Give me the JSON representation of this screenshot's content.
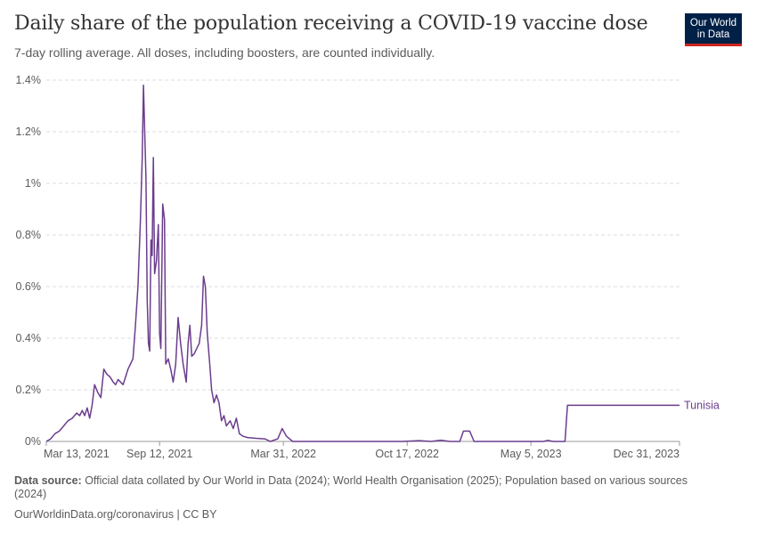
{
  "header": {
    "title": "Daily share of the population receiving a COVID-19 vaccine dose",
    "subtitle": "7-day rolling average. All doses, including boosters, are counted individually."
  },
  "logo": {
    "line1": "Our World",
    "line2": "in Data"
  },
  "footer": {
    "source_label": "Data source:",
    "source_text": " Official data collated by Our World in Data (2024); World Health Organisation (2025); Population based on various sources (2024)",
    "credit": "OurWorldinData.org/coronavirus | CC BY"
  },
  "colors": {
    "series": "#6b3d8d",
    "grid": "#dddddd",
    "axis": "#999999"
  },
  "chart_data": {
    "type": "line",
    "title": "Daily share of the population receiving a COVID-19 vaccine dose",
    "ylabel": "",
    "xlabel": "",
    "ylim": [
      0,
      1.4
    ],
    "y_ticks": [
      {
        "value": 0,
        "label": "0%"
      },
      {
        "value": 0.2,
        "label": "0.2%"
      },
      {
        "value": 0.4,
        "label": "0.4%"
      },
      {
        "value": 0.6,
        "label": "0.6%"
      },
      {
        "value": 0.8,
        "label": "0.8%"
      },
      {
        "value": 1.0,
        "label": "1%"
      },
      {
        "value": 1.2,
        "label": "1.2%"
      },
      {
        "value": 1.4,
        "label": "1.4%"
      }
    ],
    "xlim": [
      "2021-03-13",
      "2023-12-31"
    ],
    "x_ticks": [
      {
        "date": "2021-03-13",
        "label": "Mar 13, 2021"
      },
      {
        "date": "2021-09-12",
        "label": "Sep 12, 2021"
      },
      {
        "date": "2022-03-31",
        "label": "Mar 31, 2022"
      },
      {
        "date": "2022-10-17",
        "label": "Oct 17, 2022"
      },
      {
        "date": "2023-05-05",
        "label": "May 5, 2023"
      },
      {
        "date": "2023-12-31",
        "label": "Dec 31, 2023"
      }
    ],
    "grid": true,
    "legend": "end-of-line",
    "series": [
      {
        "name": "Tunisia",
        "points": [
          [
            "2021-03-13",
            0.0
          ],
          [
            "2021-03-20",
            0.01
          ],
          [
            "2021-03-27",
            0.03
          ],
          [
            "2021-04-03",
            0.04
          ],
          [
            "2021-04-10",
            0.06
          ],
          [
            "2021-04-17",
            0.08
          ],
          [
            "2021-04-24",
            0.09
          ],
          [
            "2021-05-01",
            0.11
          ],
          [
            "2021-05-06",
            0.1
          ],
          [
            "2021-05-10",
            0.12
          ],
          [
            "2021-05-14",
            0.1
          ],
          [
            "2021-05-18",
            0.13
          ],
          [
            "2021-05-22",
            0.09
          ],
          [
            "2021-05-26",
            0.14
          ],
          [
            "2021-05-30",
            0.22
          ],
          [
            "2021-06-04",
            0.19
          ],
          [
            "2021-06-09",
            0.17
          ],
          [
            "2021-06-14",
            0.28
          ],
          [
            "2021-06-19",
            0.26
          ],
          [
            "2021-06-24",
            0.25
          ],
          [
            "2021-06-29",
            0.23
          ],
          [
            "2021-07-03",
            0.22
          ],
          [
            "2021-07-07",
            0.24
          ],
          [
            "2021-07-11",
            0.23
          ],
          [
            "2021-07-15",
            0.22
          ],
          [
            "2021-07-19",
            0.25
          ],
          [
            "2021-07-23",
            0.28
          ],
          [
            "2021-07-27",
            0.3
          ],
          [
            "2021-07-31",
            0.32
          ],
          [
            "2021-08-04",
            0.45
          ],
          [
            "2021-08-08",
            0.6
          ],
          [
            "2021-08-12",
            0.85
          ],
          [
            "2021-08-15",
            1.1
          ],
          [
            "2021-08-17",
            1.38
          ],
          [
            "2021-08-19",
            1.2
          ],
          [
            "2021-08-21",
            1.02
          ],
          [
            "2021-08-23",
            0.55
          ],
          [
            "2021-08-25",
            0.38
          ],
          [
            "2021-08-27",
            0.35
          ],
          [
            "2021-08-29",
            0.78
          ],
          [
            "2021-08-31",
            0.72
          ],
          [
            "2021-09-02",
            1.1
          ],
          [
            "2021-09-04",
            0.65
          ],
          [
            "2021-09-07",
            0.7
          ],
          [
            "2021-09-10",
            0.84
          ],
          [
            "2021-09-12",
            0.42
          ],
          [
            "2021-09-14",
            0.36
          ],
          [
            "2021-09-17",
            0.92
          ],
          [
            "2021-09-20",
            0.86
          ],
          [
            "2021-09-22",
            0.3
          ],
          [
            "2021-09-26",
            0.32
          ],
          [
            "2021-09-30",
            0.28
          ],
          [
            "2021-10-04",
            0.23
          ],
          [
            "2021-10-08",
            0.3
          ],
          [
            "2021-10-12",
            0.48
          ],
          [
            "2021-10-16",
            0.38
          ],
          [
            "2021-10-20",
            0.3
          ],
          [
            "2021-10-25",
            0.23
          ],
          [
            "2021-10-28",
            0.38
          ],
          [
            "2021-10-31",
            0.45
          ],
          [
            "2021-11-03",
            0.33
          ],
          [
            "2021-11-07",
            0.34
          ],
          [
            "2021-11-11",
            0.36
          ],
          [
            "2021-11-15",
            0.38
          ],
          [
            "2021-11-19",
            0.45
          ],
          [
            "2021-11-22",
            0.64
          ],
          [
            "2021-11-25",
            0.6
          ],
          [
            "2021-11-28",
            0.42
          ],
          [
            "2021-12-02",
            0.3
          ],
          [
            "2021-12-05",
            0.2
          ],
          [
            "2021-12-09",
            0.15
          ],
          [
            "2021-12-13",
            0.18
          ],
          [
            "2021-12-17",
            0.15
          ],
          [
            "2021-12-21",
            0.08
          ],
          [
            "2021-12-25",
            0.1
          ],
          [
            "2021-12-29",
            0.06
          ],
          [
            "2022-01-04",
            0.08
          ],
          [
            "2022-01-09",
            0.05
          ],
          [
            "2022-01-14",
            0.09
          ],
          [
            "2022-01-19",
            0.03
          ],
          [
            "2022-01-25",
            0.02
          ],
          [
            "2022-02-01",
            0.015
          ],
          [
            "2022-02-15",
            0.012
          ],
          [
            "2022-03-01",
            0.01
          ],
          [
            "2022-03-10",
            0.0
          ],
          [
            "2022-03-22",
            0.01
          ],
          [
            "2022-03-29",
            0.05
          ],
          [
            "2022-04-05",
            0.02
          ],
          [
            "2022-04-15",
            0.0
          ],
          [
            "2022-10-10",
            0.0
          ],
          [
            "2022-11-05",
            0.003
          ],
          [
            "2022-11-25",
            0.0
          ],
          [
            "2022-12-10",
            0.005
          ],
          [
            "2022-12-25",
            0.0
          ],
          [
            "2023-01-10",
            0.0
          ],
          [
            "2023-01-16",
            0.04
          ],
          [
            "2023-01-26",
            0.04
          ],
          [
            "2023-02-02",
            0.0
          ],
          [
            "2023-05-25",
            0.0
          ],
          [
            "2023-06-01",
            0.004
          ],
          [
            "2023-06-10",
            0.0
          ],
          [
            "2023-06-29",
            0.0
          ],
          [
            "2023-07-03",
            0.14
          ],
          [
            "2023-12-31",
            0.14
          ]
        ]
      }
    ]
  }
}
